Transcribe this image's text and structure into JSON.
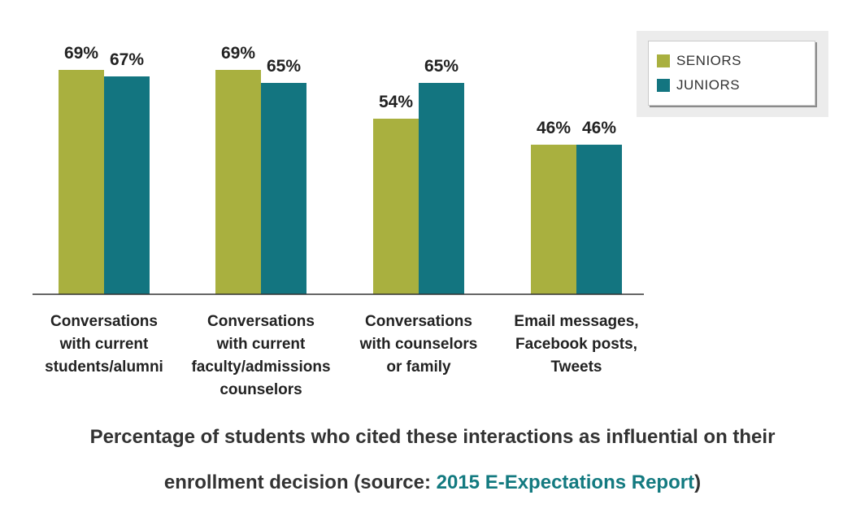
{
  "chart_data": {
    "type": "bar",
    "categories": [
      [
        "Conversations",
        "with current",
        "students/alumni"
      ],
      [
        "Conversations",
        "with current",
        "faculty/admissions",
        "counselors"
      ],
      [
        "Conversations",
        "with counselors",
        "or family"
      ],
      [
        "Email messages,",
        "Facebook posts,",
        "Tweets"
      ]
    ],
    "series": [
      {
        "name": "SENIORS",
        "color": "#a9b03f",
        "values": [
          69,
          69,
          54,
          46
        ],
        "labels": [
          "69%",
          "69%",
          "54%",
          "46%"
        ]
      },
      {
        "name": "JUNIORS",
        "color": "#137580",
        "values": [
          67,
          65,
          65,
          46
        ],
        "labels": [
          "67%",
          "65%",
          "65%",
          "46%"
        ]
      }
    ],
    "ylim": [
      0,
      75
    ],
    "legend_position": "top-right",
    "grid": false
  },
  "caption": {
    "line1": "Percentage of students who cited these interactions as influential on their",
    "line2_prefix": "enrollment decision (source: ",
    "link_text": "2015 E-Expectations Report",
    "line2_suffix": ")"
  }
}
